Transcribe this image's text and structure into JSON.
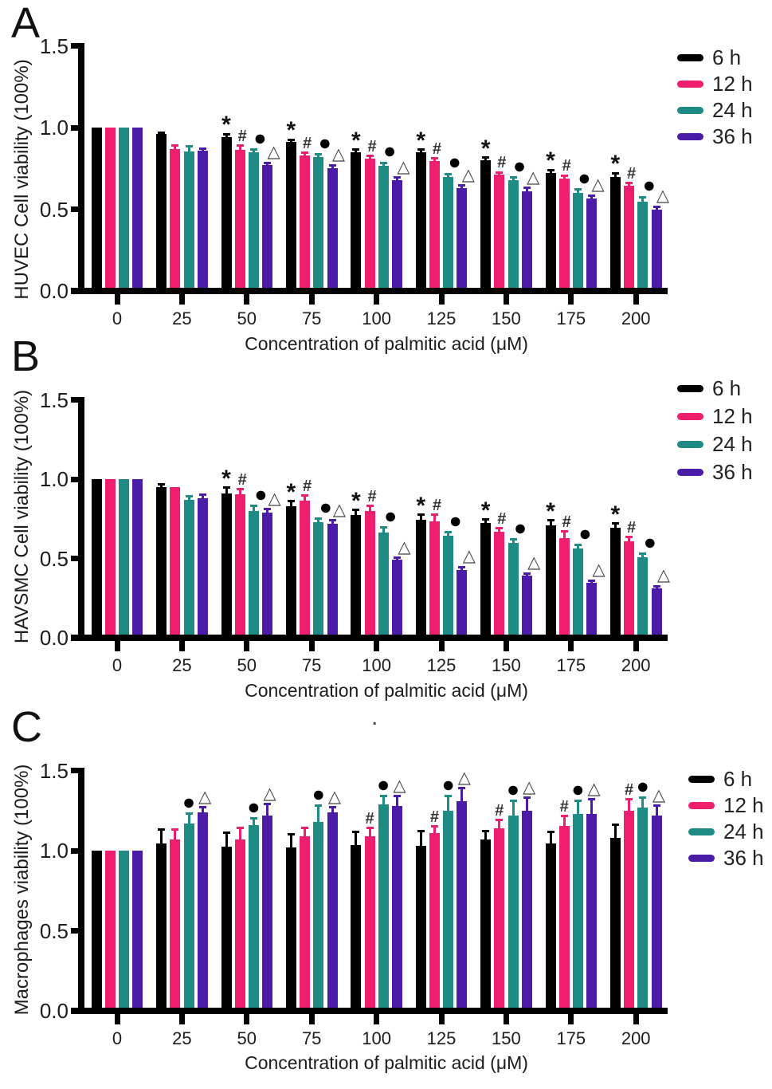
{
  "figure": {
    "panels": [
      {
        "letter": "A"
      },
      {
        "letter": "B"
      },
      {
        "letter": "C"
      }
    ],
    "stray_mark": "."
  },
  "chart_data": [
    {
      "type": "bar",
      "panel": "A",
      "title": "",
      "ylabel": "HUVEC Cell viability (100%)",
      "xlabel": "Concentration of palmitic acid (μM)",
      "categories": [
        "0",
        "25",
        "50",
        "75",
        "100",
        "125",
        "150",
        "175",
        "200"
      ],
      "yticks": [
        {
          "label": "0.0",
          "value": 0
        },
        {
          "label": "0.5",
          "value": 0.5
        },
        {
          "label": "1.0",
          "value": 1.0
        },
        {
          "label": "1.5",
          "value": 1.5
        }
      ],
      "ylim": [
        0,
        1.5
      ],
      "grid": false,
      "legend_position": "top-right",
      "series": [
        {
          "name": "6 h",
          "color": "#000000",
          "symbol": {
            "char": "*",
            "from_index": 2
          },
          "values": [
            1.0,
            0.96,
            0.94,
            0.91,
            0.85,
            0.85,
            0.8,
            0.72,
            0.7
          ],
          "errors": [
            0,
            0.01,
            0.02,
            0.015,
            0.015,
            0.015,
            0.015,
            0.02,
            0.02
          ]
        },
        {
          "name": "12 h",
          "color": "#F01E6E",
          "symbol": {
            "char": "#",
            "from_index": 2
          },
          "values": [
            1.0,
            0.87,
            0.865,
            0.83,
            0.81,
            0.795,
            0.71,
            0.69,
            0.645
          ],
          "errors": [
            0,
            0.02,
            0.025,
            0.015,
            0.015,
            0.015,
            0.015,
            0.015,
            0.015
          ]
        },
        {
          "name": "24 h",
          "color": "#1E8C85",
          "symbol": {
            "char": "●",
            "from_index": 2
          },
          "values": [
            1.0,
            0.855,
            0.85,
            0.82,
            0.765,
            0.7,
            0.68,
            0.6,
            0.545
          ],
          "errors": [
            0,
            0.03,
            0.015,
            0.015,
            0.02,
            0.015,
            0.015,
            0.02,
            0.03
          ]
        },
        {
          "name": "36 h",
          "color": "#4A1CA8",
          "symbol": {
            "char": "△",
            "from_index": 2
          },
          "values": [
            1.0,
            0.86,
            0.77,
            0.75,
            0.68,
            0.63,
            0.61,
            0.565,
            0.5
          ],
          "errors": [
            0,
            0.01,
            0.015,
            0.02,
            0.015,
            0.015,
            0.02,
            0.02,
            0.015
          ]
        }
      ]
    },
    {
      "type": "bar",
      "panel": "B",
      "title": "",
      "ylabel": "HAVSMC Cell viability (100%)",
      "xlabel": "Concentration of palmitic acid (μM)",
      "categories": [
        "0",
        "25",
        "50",
        "75",
        "100",
        "125",
        "150",
        "175",
        "200"
      ],
      "yticks": [
        {
          "label": "0.0",
          "value": 0
        },
        {
          "label": "0.5",
          "value": 0.5
        },
        {
          "label": "1.0",
          "value": 1.0
        },
        {
          "label": "1.5",
          "value": 1.5
        }
      ],
      "ylim": [
        0,
        1.5
      ],
      "grid": false,
      "legend_position": "top-right",
      "series": [
        {
          "name": "6 h",
          "color": "#000000",
          "symbol": {
            "char": "*",
            "from_index": 2
          },
          "values": [
            1.0,
            0.95,
            0.91,
            0.83,
            0.775,
            0.745,
            0.725,
            0.71,
            0.695
          ],
          "errors": [
            0,
            0.015,
            0.035,
            0.03,
            0.03,
            0.03,
            0.02,
            0.03,
            0.025
          ]
        },
        {
          "name": "12 h",
          "color": "#F01E6E",
          "symbol": {
            "char": "#",
            "from_index": 2
          },
          "values": [
            1.0,
            0.95,
            0.905,
            0.865,
            0.8,
            0.735,
            0.67,
            0.63,
            0.61
          ],
          "errors": [
            0,
            0.01,
            0.03,
            0.03,
            0.03,
            0.04,
            0.02,
            0.04,
            0.025
          ]
        },
        {
          "name": "24 h",
          "color": "#1E8C85",
          "symbol": {
            "char": "●",
            "from_index": 2
          },
          "values": [
            1.0,
            0.87,
            0.8,
            0.73,
            0.665,
            0.645,
            0.6,
            0.565,
            0.51
          ],
          "errors": [
            0,
            0.02,
            0.03,
            0.02,
            0.03,
            0.02,
            0.02,
            0.02,
            0.02
          ]
        },
        {
          "name": "36 h",
          "color": "#4A1CA8",
          "symbol": {
            "char": "△",
            "from_index": 2
          },
          "values": [
            1.0,
            0.88,
            0.79,
            0.72,
            0.49,
            0.425,
            0.39,
            0.345,
            0.31
          ],
          "errors": [
            0,
            0.02,
            0.02,
            0.02,
            0.015,
            0.02,
            0.015,
            0.015,
            0.015
          ]
        }
      ]
    },
    {
      "type": "bar",
      "panel": "C",
      "title": "",
      "ylabel": "Macrophages viability (100%)",
      "xlabel": "Concentration of palmitic acid (μM)",
      "categories": [
        "0",
        "25",
        "50",
        "75",
        "100",
        "125",
        "150",
        "175",
        "200"
      ],
      "yticks": [
        {
          "label": "0.0",
          "value": 0
        },
        {
          "label": "0.5",
          "value": 0.5
        },
        {
          "label": "1.0",
          "value": 1.0
        },
        {
          "label": "1.5",
          "value": 1.5
        }
      ],
      "ylim": [
        0,
        1.5
      ],
      "grid": false,
      "legend_position": "top-right",
      "series": [
        {
          "name": "6 h",
          "color": "#000000",
          "symbol": null,
          "values": [
            1.0,
            1.045,
            1.025,
            1.02,
            1.035,
            1.03,
            1.07,
            1.045,
            1.08
          ],
          "errors": [
            0,
            0.085,
            0.085,
            0.08,
            0.08,
            0.09,
            0.05,
            0.07,
            0.08
          ]
        },
        {
          "name": "12 h",
          "color": "#F01E6E",
          "symbol": {
            "char": "#",
            "from_index": 4
          },
          "values": [
            1.0,
            1.07,
            1.07,
            1.09,
            1.09,
            1.11,
            1.14,
            1.155,
            1.25
          ],
          "errors": [
            0,
            0.06,
            0.07,
            0.05,
            0.05,
            0.04,
            0.05,
            0.06,
            0.07
          ]
        },
        {
          "name": "24 h",
          "color": "#1E8C85",
          "symbol": {
            "char": "●",
            "from_index": 1
          },
          "values": [
            1.0,
            1.17,
            1.16,
            1.18,
            1.29,
            1.25,
            1.22,
            1.23,
            1.27
          ],
          "errors": [
            0,
            0.06,
            0.04,
            0.1,
            0.05,
            0.09,
            0.09,
            0.08,
            0.06
          ]
        },
        {
          "name": "36 h",
          "color": "#4A1CA8",
          "symbol": {
            "char": "△",
            "from_index": 1
          },
          "values": [
            1.0,
            1.24,
            1.22,
            1.24,
            1.28,
            1.31,
            1.25,
            1.23,
            1.22
          ],
          "errors": [
            0,
            0.03,
            0.07,
            0.03,
            0.06,
            0.08,
            0.08,
            0.09,
            0.06
          ]
        }
      ]
    }
  ]
}
